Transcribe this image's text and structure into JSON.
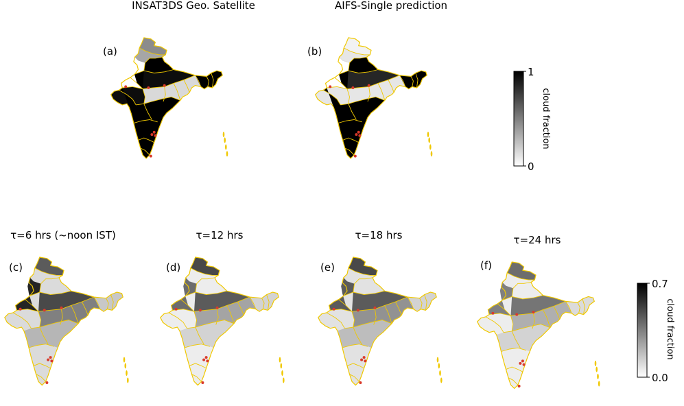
{
  "figure": {
    "top_titles": [
      "INSAT3DS Geo. Satellite",
      "AIFS-Single prediction"
    ],
    "bottom_titles": [
      "τ=6 hrs (~noon IST)",
      "τ=12 hrs",
      "τ=18 hrs",
      "τ=24 hrs"
    ]
  },
  "chart_data": [
    {
      "type": "heatmap",
      "panel_label": "(a)",
      "title": "INSAT3DS Geo. Satellite",
      "variable": "cloud fraction",
      "colorbar": {
        "label": "cloud fraction",
        "range": [
          0,
          1
        ],
        "ticks": [
          "0",
          "1"
        ],
        "cmap": "gray_r"
      },
      "regions": [
        {
          "name": "Jammu & Kashmir / Ladakh",
          "value": 0.45
        },
        {
          "name": "Himachal / Uttarakhand",
          "value": 0.35
        },
        {
          "name": "Punjab / Haryana / Rajasthan",
          "value": 0.0
        },
        {
          "name": "Indo-Gangetic plain",
          "value": 0.95
        },
        {
          "name": "Central India",
          "value": 0.15
        },
        {
          "name": "Gujarat",
          "value": 0.95
        },
        {
          "name": "Maharashtra / Deccan",
          "value": 1.0
        },
        {
          "name": "South India",
          "value": 1.0
        },
        {
          "name": "Northeast India",
          "value": 1.0
        }
      ]
    },
    {
      "type": "heatmap",
      "panel_label": "(b)",
      "title": "AIFS-Single prediction",
      "variable": "cloud fraction",
      "colorbar": {
        "label": "cloud fraction",
        "range": [
          0,
          1
        ],
        "ticks": [
          "0",
          "1"
        ],
        "cmap": "gray_r"
      },
      "regions": [
        {
          "name": "Jammu & Kashmir / Ladakh",
          "value": 0.05
        },
        {
          "name": "Himachal / Uttarakhand",
          "value": 0.1
        },
        {
          "name": "Punjab / Haryana / Rajasthan",
          "value": 0.0
        },
        {
          "name": "Indo-Gangetic plain",
          "value": 0.85
        },
        {
          "name": "Central India",
          "value": 0.1
        },
        {
          "name": "Gujarat",
          "value": 0.1
        },
        {
          "name": "Maharashtra / Deccan",
          "value": 1.0
        },
        {
          "name": "South India",
          "value": 1.0
        },
        {
          "name": "Northeast India",
          "value": 1.0
        }
      ]
    },
    {
      "type": "heatmap",
      "panel_label": "(c)",
      "title": "τ=6 hrs (~noon IST)",
      "variable": "cloud fraction",
      "colorbar": {
        "label": "cloud fraction",
        "range": [
          0.0,
          0.7
        ],
        "ticks": [
          "0.0",
          "0.7"
        ],
        "cmap": "gray_r"
      },
      "regions": [
        {
          "name": "Jammu & Kashmir / Ladakh",
          "value": 0.45
        },
        {
          "name": "Punjab / Haryana / Rajasthan",
          "value": 0.6
        },
        {
          "name": "Indo-Gangetic plain",
          "value": 0.5
        },
        {
          "name": "Central India",
          "value": 0.35
        },
        {
          "name": "Maharashtra / Deccan",
          "value": 0.2
        },
        {
          "name": "South India",
          "value": 0.1
        },
        {
          "name": "Northeast India",
          "value": 0.15
        }
      ]
    },
    {
      "type": "heatmap",
      "panel_label": "(d)",
      "title": "τ=12 hrs",
      "variable": "cloud fraction",
      "colorbar": {
        "label": "cloud fraction",
        "range": [
          0.0,
          0.7
        ],
        "ticks": [
          "0.0",
          "0.7"
        ],
        "cmap": "gray_r"
      },
      "regions": [
        {
          "name": "Jammu & Kashmir / Ladakh",
          "value": 0.5
        },
        {
          "name": "Punjab / Haryana / Rajasthan",
          "value": 0.4
        },
        {
          "name": "Indo-Gangetic plain",
          "value": 0.45
        },
        {
          "name": "Central India",
          "value": 0.25
        },
        {
          "name": "Maharashtra / Deccan",
          "value": 0.12
        },
        {
          "name": "South India",
          "value": 0.05
        },
        {
          "name": "Northeast India",
          "value": 0.12
        }
      ]
    },
    {
      "type": "heatmap",
      "panel_label": "(e)",
      "title": "τ=18 hrs",
      "variable": "cloud fraction",
      "colorbar": {
        "label": "cloud fraction",
        "range": [
          0.0,
          0.7
        ],
        "ticks": [
          "0.0",
          "0.7"
        ],
        "cmap": "gray_r"
      },
      "regions": [
        {
          "name": "Jammu & Kashmir / Ladakh",
          "value": 0.5
        },
        {
          "name": "Punjab / Haryana / Rajasthan",
          "value": 0.45
        },
        {
          "name": "Indo-Gangetic plain",
          "value": 0.45
        },
        {
          "name": "Central India",
          "value": 0.3
        },
        {
          "name": "Maharashtra / Deccan",
          "value": 0.18
        },
        {
          "name": "South India",
          "value": 0.08
        },
        {
          "name": "Northeast India",
          "value": 0.12
        }
      ]
    },
    {
      "type": "heatmap",
      "panel_label": "(f)",
      "title": "τ=24 hrs",
      "variable": "cloud fraction",
      "colorbar": {
        "label": "cloud fraction",
        "range": [
          0.0,
          0.7
        ],
        "ticks": [
          "0.0",
          "0.7"
        ],
        "cmap": "gray_r"
      },
      "regions": [
        {
          "name": "Jammu & Kashmir / Ladakh",
          "value": 0.4
        },
        {
          "name": "Punjab / Haryana / Rajasthan",
          "value": 0.35
        },
        {
          "name": "Indo-Gangetic plain",
          "value": 0.38
        },
        {
          "name": "Central India",
          "value": 0.22
        },
        {
          "name": "Maharashtra / Deccan",
          "value": 0.12
        },
        {
          "name": "South India",
          "value": 0.05
        },
        {
          "name": "Northeast India",
          "value": 0.1
        }
      ]
    }
  ],
  "colors": {
    "border": "#f0c800",
    "marker": "#d93a2b"
  }
}
